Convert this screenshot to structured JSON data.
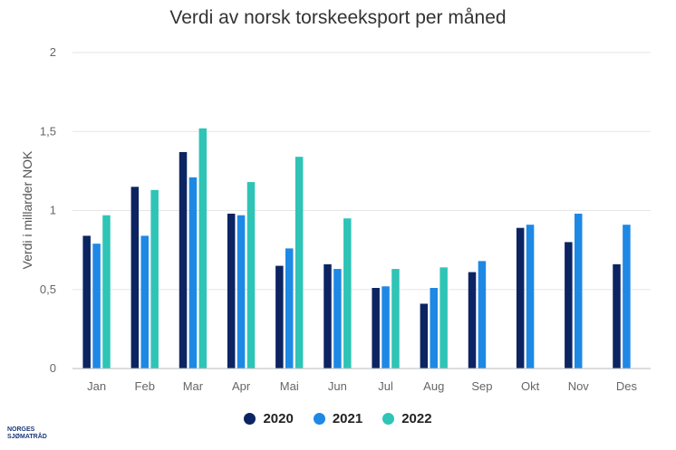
{
  "chart_data": {
    "type": "bar",
    "title": "Verdi av norsk torskeeksport per måned",
    "ylabel": "Verdi i millarder NOK",
    "xlabel": "",
    "ylim": [
      0,
      2
    ],
    "yticks": [
      {
        "value": 0,
        "label": "0"
      },
      {
        "value": 0.5,
        "label": "0,5"
      },
      {
        "value": 1,
        "label": "1"
      },
      {
        "value": 1.5,
        "label": "1,5"
      },
      {
        "value": 2,
        "label": "2"
      }
    ],
    "grid": true,
    "legend_position": "bottom",
    "categories": [
      "Jan",
      "Feb",
      "Mar",
      "Apr",
      "Mai",
      "Jun",
      "Jul",
      "Aug",
      "Sep",
      "Okt",
      "Nov",
      "Des"
    ],
    "series": [
      {
        "name": "2020",
        "color": "#0c2461",
        "values": [
          0.84,
          1.15,
          1.37,
          0.98,
          0.65,
          0.66,
          0.51,
          0.41,
          0.61,
          0.89,
          0.8,
          0.66
        ]
      },
      {
        "name": "2021",
        "color": "#1e88e5",
        "values": [
          0.79,
          0.84,
          1.21,
          0.97,
          0.76,
          0.63,
          0.52,
          0.51,
          0.68,
          0.91,
          0.98,
          0.91
        ]
      },
      {
        "name": "2022",
        "color": "#2ec4b6",
        "values": [
          0.97,
          1.13,
          1.52,
          1.18,
          1.34,
          0.95,
          0.63,
          0.64,
          null,
          null,
          null,
          null
        ]
      }
    ]
  },
  "logo": {
    "line1": "NORGES",
    "line2": "SJØMATRÅD"
  }
}
